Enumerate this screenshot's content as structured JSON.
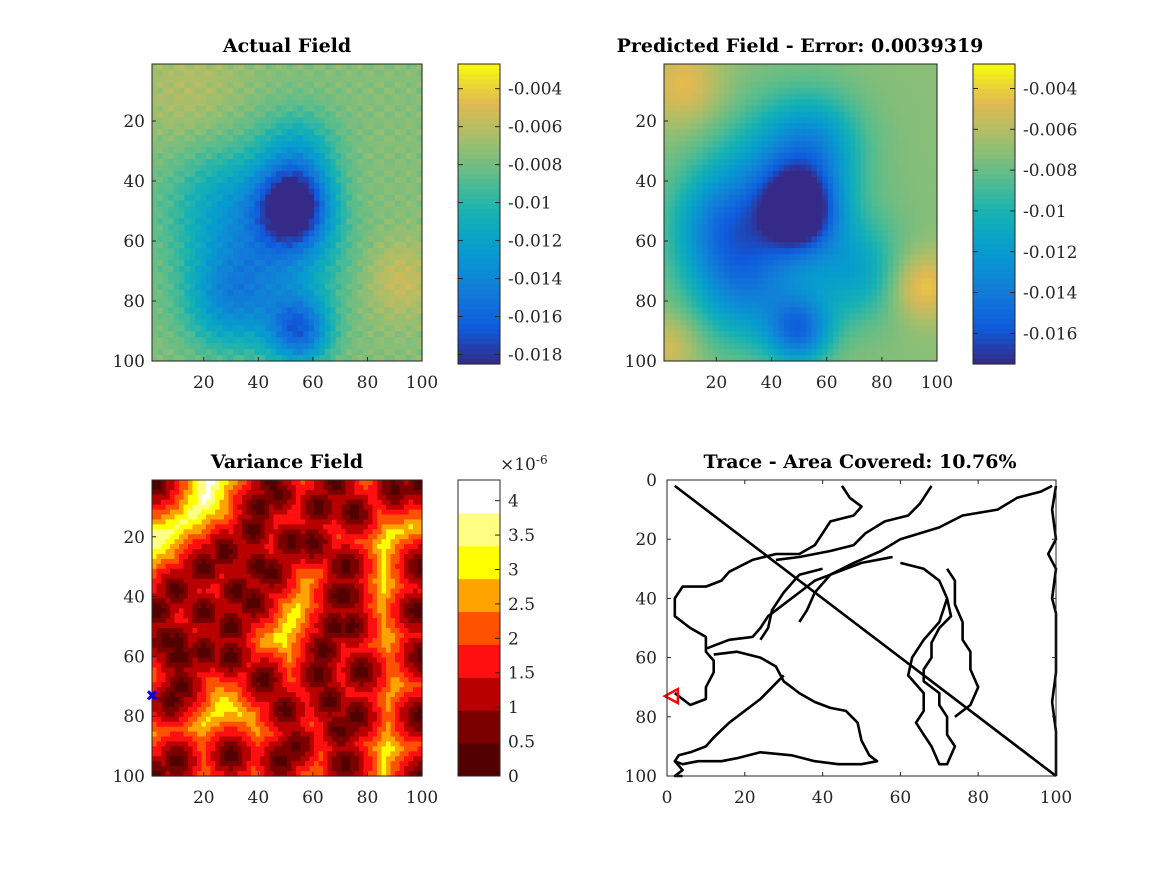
{
  "chart_data": [
    {
      "type": "heatmap",
      "title": "Actual Field",
      "xlim": [
        1,
        100
      ],
      "ylim": [
        1,
        100
      ],
      "y_reversed": true,
      "x_ticks": [
        20,
        40,
        60,
        80,
        100
      ],
      "y_ticks": [
        20,
        40,
        60,
        80,
        100
      ],
      "colormap": "parula",
      "colorbar": {
        "min": -0.0185,
        "max": -0.0027,
        "ticks": [
          -0.004,
          -0.006,
          -0.008,
          -0.01,
          -0.012,
          -0.014,
          -0.016,
          -0.018
        ]
      },
      "background_level": -0.0075,
      "features": [
        {
          "x": 53,
          "y": 48,
          "value": -0.0182,
          "spread": 9
        },
        {
          "x": 30,
          "y": 50,
          "value": -0.012,
          "spread": 16
        },
        {
          "x": 55,
          "y": 30,
          "value": -0.011,
          "spread": 10
        },
        {
          "x": 30,
          "y": 80,
          "value": -0.013,
          "spread": 12
        },
        {
          "x": 55,
          "y": 90,
          "value": -0.0155,
          "spread": 8
        },
        {
          "x": 52,
          "y": 65,
          "value": -0.0115,
          "spread": 14
        },
        {
          "x": 15,
          "y": 10,
          "value": -0.0062,
          "spread": 14
        },
        {
          "x": 92,
          "y": 73,
          "value": -0.0055,
          "spread": 9
        }
      ]
    },
    {
      "type": "heatmap",
      "title": "Predicted Field - Error: 0.0039319",
      "xlim": [
        1,
        100
      ],
      "ylim": [
        1,
        100
      ],
      "y_reversed": true,
      "x_ticks": [
        20,
        40,
        60,
        80,
        100
      ],
      "y_ticks": [
        20,
        40,
        60,
        80,
        100
      ],
      "colormap": "parula",
      "colorbar": {
        "min": -0.0175,
        "max": -0.0028,
        "ticks": [
          -0.004,
          -0.006,
          -0.008,
          -0.01,
          -0.012,
          -0.014,
          -0.016
        ]
      },
      "background_level": -0.0072,
      "features": [
        {
          "x": 50,
          "y": 50,
          "value": -0.0168,
          "spread": 9
        },
        {
          "x": 40,
          "y": 45,
          "value": -0.0125,
          "spread": 18
        },
        {
          "x": 55,
          "y": 28,
          "value": -0.0115,
          "spread": 12
        },
        {
          "x": 30,
          "y": 75,
          "value": -0.0125,
          "spread": 14
        },
        {
          "x": 50,
          "y": 90,
          "value": -0.014,
          "spread": 8
        },
        {
          "x": 20,
          "y": 55,
          "value": -0.011,
          "spread": 12
        },
        {
          "x": 70,
          "y": 70,
          "value": -0.011,
          "spread": 12
        },
        {
          "x": 8,
          "y": 8,
          "value": -0.0045,
          "spread": 10
        },
        {
          "x": 95,
          "y": 75,
          "value": -0.004,
          "spread": 8
        },
        {
          "x": 3,
          "y": 95,
          "value": -0.005,
          "spread": 8
        }
      ]
    },
    {
      "type": "heatmap",
      "title": "Variance Field",
      "xlim": [
        1,
        100
      ],
      "ylim": [
        1,
        100
      ],
      "y_reversed": true,
      "x_ticks": [
        20,
        40,
        60,
        80,
        100
      ],
      "y_ticks": [
        20,
        40,
        60,
        80,
        100
      ],
      "colormap": "hot (9 levels)",
      "colorbar": {
        "min": 0,
        "max": 4.3,
        "exponent_label": "×10",
        "exponent": "-6",
        "ticks": [
          0,
          0.5,
          1,
          1.5,
          2,
          2.5,
          3,
          3.5,
          4
        ],
        "tick_labels": [
          "0",
          "0.5",
          "1",
          "1.5",
          "2",
          "2.5",
          "3",
          "3.5",
          "4"
        ]
      },
      "path_sample_points": [
        [
          2,
          2
        ],
        [
          100,
          100
        ],
        [
          45,
          2
        ],
        [
          47,
          6
        ],
        [
          40,
          10
        ],
        [
          38,
          18
        ],
        [
          28,
          25
        ],
        [
          20,
          30
        ],
        [
          10,
          38
        ],
        [
          3,
          45
        ],
        [
          6,
          55
        ],
        [
          12,
          60
        ],
        [
          12,
          70
        ],
        [
          8,
          75
        ],
        [
          68,
          2
        ],
        [
          62,
          10
        ],
        [
          52,
          22
        ],
        [
          40,
          30
        ],
        [
          32,
          38
        ],
        [
          20,
          45
        ],
        [
          10,
          55
        ],
        [
          30,
          60
        ],
        [
          42,
          68
        ],
        [
          50,
          78
        ],
        [
          54,
          90
        ],
        [
          48,
          95
        ],
        [
          30,
          93
        ],
        [
          10,
          95
        ],
        [
          2,
          100
        ],
        [
          99,
          2
        ],
        [
          90,
          4
        ],
        [
          75,
          12
        ],
        [
          60,
          22
        ],
        [
          45,
          32
        ],
        [
          38,
          42
        ],
        [
          30,
          50
        ],
        [
          20,
          58
        ],
        [
          10,
          60
        ],
        [
          72,
          30
        ],
        [
          72,
          40
        ],
        [
          68,
          50
        ],
        [
          64,
          58
        ],
        [
          62,
          66
        ],
        [
          66,
          75
        ],
        [
          70,
          85
        ],
        [
          72,
          96
        ],
        [
          76,
          80
        ],
        [
          78,
          65
        ],
        [
          74,
          50
        ],
        [
          70,
          40
        ],
        [
          100,
          30
        ],
        [
          98,
          45
        ],
        [
          100,
          60
        ],
        [
          99,
          80
        ],
        [
          100,
          100
        ]
      ],
      "marker": {
        "x": 1,
        "y": 73,
        "symbol": "x",
        "color": "#0000ff"
      }
    },
    {
      "type": "line",
      "title": "Trace - Area Covered: 10.76%",
      "xlim": [
        0,
        100
      ],
      "ylim": [
        0,
        100
      ],
      "y_reversed": true,
      "x_ticks": [
        0,
        20,
        40,
        60,
        80,
        100
      ],
      "y_ticks": [
        0,
        20,
        40,
        60,
        80,
        100
      ],
      "series": [
        {
          "values": [
            [
              2,
              2
            ],
            [
              100,
              100
            ]
          ]
        },
        {
          "values": [
            [
              45,
              2
            ],
            [
              47,
              6
            ],
            [
              50,
              9
            ],
            [
              48,
              12
            ],
            [
              42,
              14
            ],
            [
              40,
              18
            ],
            [
              38,
              22
            ],
            [
              34,
              25
            ],
            [
              28,
              25
            ],
            [
              22,
              27
            ],
            [
              16,
              31
            ],
            [
              14,
              34
            ],
            [
              10,
              36
            ],
            [
              4,
              36
            ],
            [
              2,
              40
            ],
            [
              2,
              46
            ],
            [
              6,
              50
            ],
            [
              10,
              53
            ],
            [
              10,
              58
            ],
            [
              12,
              61
            ],
            [
              12,
              65
            ],
            [
              10,
              70
            ],
            [
              10,
              74
            ],
            [
              6,
              76
            ],
            [
              3,
              73
            ],
            [
              2,
              72
            ]
          ]
        },
        {
          "values": [
            [
              68,
              2
            ],
            [
              65,
              8
            ],
            [
              62,
              12
            ],
            [
              56,
              14
            ],
            [
              51,
              18
            ],
            [
              48,
              22
            ],
            [
              42,
              24
            ],
            [
              38,
              25
            ],
            [
              34,
              26
            ],
            [
              28,
              27
            ]
          ]
        },
        {
          "values": [
            [
              99,
              2
            ],
            [
              96,
              4
            ],
            [
              90,
              6
            ],
            [
              85,
              10
            ],
            [
              76,
              12
            ],
            [
              70,
              16
            ],
            [
              60,
              20
            ],
            [
              55,
              24
            ],
            [
              48,
              28
            ],
            [
              42,
              32
            ],
            [
              38,
              34
            ],
            [
              34,
              38
            ],
            [
              30,
              42
            ],
            [
              26,
              46
            ],
            [
              24,
              50
            ],
            [
              22,
              53
            ],
            [
              16,
              54
            ],
            [
              10,
              57
            ]
          ]
        },
        {
          "values": [
            [
              40,
              30
            ],
            [
              34,
              32
            ],
            [
              30,
              38
            ],
            [
              27,
              44
            ],
            [
              26,
              50
            ],
            [
              24,
              54
            ]
          ]
        },
        {
          "values": [
            [
              58,
              26
            ],
            [
              50,
              28
            ],
            [
              42,
              32
            ],
            [
              38,
              38
            ],
            [
              36,
              44
            ],
            [
              34,
              48
            ]
          ]
        },
        {
          "values": [
            [
              12,
              59
            ],
            [
              18,
              58
            ],
            [
              24,
              60
            ],
            [
              28,
              63
            ],
            [
              30,
              68
            ],
            [
              34,
              72
            ],
            [
              38,
              75
            ],
            [
              42,
              77
            ],
            [
              46,
              78
            ],
            [
              49,
              82
            ],
            [
              50,
              88
            ],
            [
              52,
              93
            ],
            [
              54,
              95
            ],
            [
              50,
              96
            ],
            [
              44,
              96
            ],
            [
              38,
              95
            ],
            [
              32,
              93
            ],
            [
              24,
              92
            ],
            [
              18,
              94
            ],
            [
              14,
              95
            ],
            [
              8,
              95
            ],
            [
              4,
              96
            ],
            [
              2,
              95
            ],
            [
              4,
              98
            ],
            [
              2,
              100
            ],
            [
              4,
              100
            ]
          ]
        },
        {
          "values": [
            [
              30,
              66
            ],
            [
              24,
              74
            ],
            [
              16,
              82
            ],
            [
              12,
              87
            ],
            [
              10,
              90
            ],
            [
              6,
              92
            ],
            [
              3,
              93
            ],
            [
              2,
              95
            ]
          ]
        },
        {
          "values": [
            [
              60,
              28
            ],
            [
              66,
              30
            ],
            [
              70,
              34
            ],
            [
              72,
              40
            ],
            [
              73,
              46
            ],
            [
              70,
              50
            ],
            [
              68,
              55
            ],
            [
              68,
              60
            ],
            [
              66,
              64
            ],
            [
              66,
              68
            ],
            [
              70,
              72
            ],
            [
              70,
              76
            ],
            [
              72,
              80
            ],
            [
              72,
              86
            ],
            [
              74,
              90
            ],
            [
              72,
              96
            ],
            [
              70,
              96
            ],
            [
              68,
              90
            ],
            [
              66,
              86
            ],
            [
              64,
              82
            ],
            [
              66,
              78
            ],
            [
              66,
              72
            ],
            [
              62,
              66
            ],
            [
              63,
              60
            ],
            [
              66,
              54
            ],
            [
              70,
              48
            ],
            [
              72,
              40
            ]
          ]
        },
        {
          "values": [
            [
              72,
              30
            ],
            [
              74,
              34
            ],
            [
              74,
              42
            ],
            [
              76,
              48
            ],
            [
              76,
              54
            ],
            [
              78,
              58
            ],
            [
              78,
              64
            ],
            [
              80,
              70
            ],
            [
              78,
              76
            ],
            [
              74,
              80
            ]
          ]
        },
        {
          "values": [
            [
              100,
              2
            ],
            [
              99,
              10
            ],
            [
              100,
              20
            ],
            [
              98,
              25
            ],
            [
              100,
              30
            ],
            [
              99,
              40
            ],
            [
              100,
              45
            ],
            [
              100,
              55
            ],
            [
              100,
              65
            ],
            [
              99,
              75
            ],
            [
              100,
              85
            ],
            [
              100,
              95
            ],
            [
              100,
              100
            ]
          ]
        }
      ],
      "marker": {
        "x": 1,
        "y": 73,
        "symbol": "triangle-left",
        "color": "#ff0000"
      }
    }
  ]
}
